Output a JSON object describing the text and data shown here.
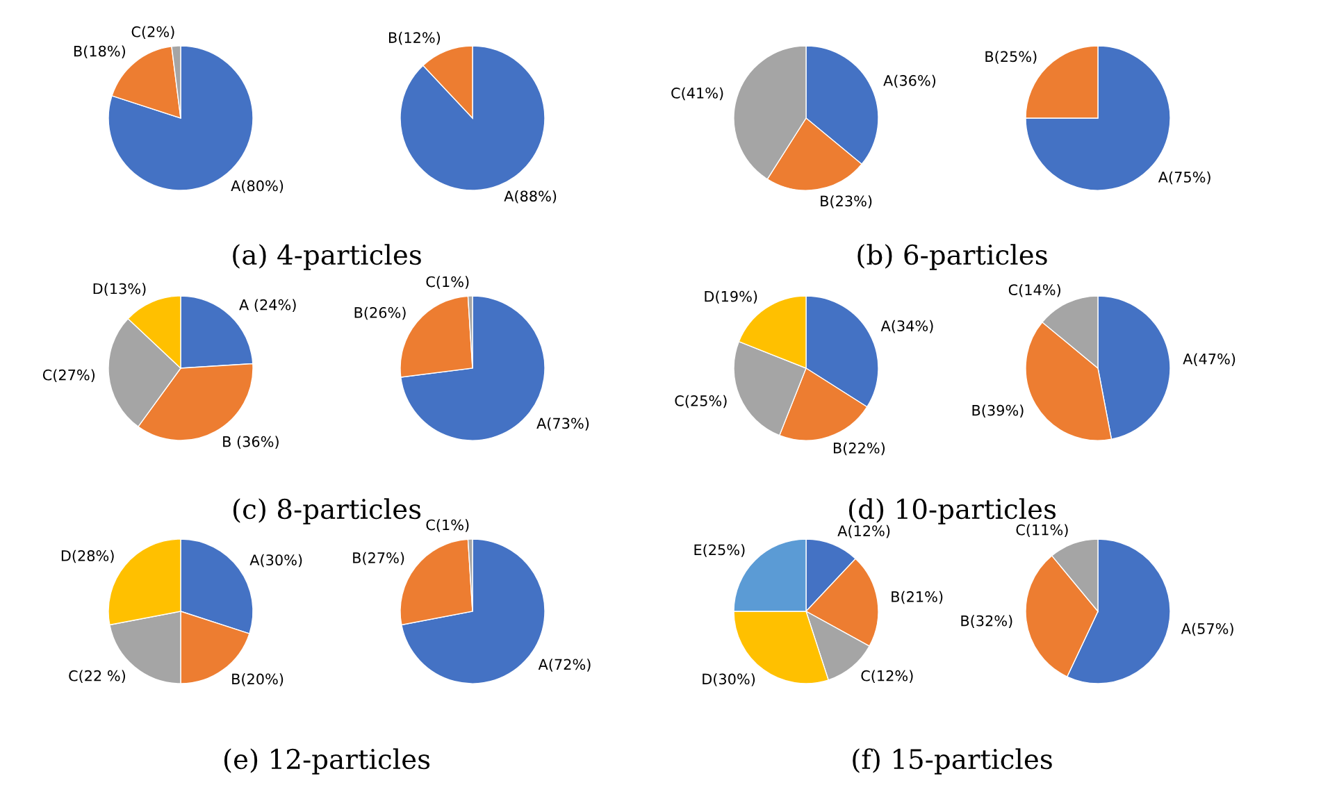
{
  "chart_data": [
    {
      "type": "pie",
      "title": "(a) 4-particles",
      "categories": [
        "A(80%)",
        "B(18%)",
        "C(2%)"
      ],
      "values": [
        80,
        18,
        2
      ],
      "colors": [
        "#4472c4",
        "#ed7d31",
        "#a5a5a5"
      ]
    },
    {
      "type": "pie",
      "categories": [
        "A(88%)",
        "B(12%)"
      ],
      "values": [
        88,
        12
      ],
      "colors": [
        "#4472c4",
        "#ed7d31"
      ]
    },
    {
      "type": "pie",
      "title": "(b) 6-particles",
      "categories": [
        "A(36%)",
        "B(23%)",
        "C(41%)"
      ],
      "values": [
        36,
        23,
        41
      ],
      "colors": [
        "#4472c4",
        "#ed7d31",
        "#a5a5a5"
      ]
    },
    {
      "type": "pie",
      "categories": [
        "A(75%)",
        "B(25%)"
      ],
      "values": [
        75,
        25
      ],
      "colors": [
        "#4472c4",
        "#ed7d31"
      ]
    },
    {
      "type": "pie",
      "title": "(c) 8-particles",
      "categories": [
        "A (24%)",
        "B (36%)",
        "C(27%)",
        "D(13%)"
      ],
      "values": [
        24,
        36,
        27,
        13
      ],
      "colors": [
        "#4472c4",
        "#ed7d31",
        "#a5a5a5",
        "#ffc000"
      ]
    },
    {
      "type": "pie",
      "categories": [
        "A(73%)",
        "B(26%)",
        "C(1%)"
      ],
      "values": [
        73,
        26,
        1
      ],
      "colors": [
        "#4472c4",
        "#ed7d31",
        "#a5a5a5"
      ]
    },
    {
      "type": "pie",
      "title": "(d) 10-particles",
      "categories": [
        "A(34%)",
        "B(22%)",
        "C(25%)",
        "D(19%)"
      ],
      "values": [
        34,
        22,
        25,
        19
      ],
      "colors": [
        "#4472c4",
        "#ed7d31",
        "#a5a5a5",
        "#ffc000"
      ]
    },
    {
      "type": "pie",
      "categories": [
        "A(47%)",
        "B(39%)",
        "C(14%)"
      ],
      "values": [
        47,
        39,
        14
      ],
      "colors": [
        "#4472c4",
        "#ed7d31",
        "#a5a5a5"
      ]
    },
    {
      "type": "pie",
      "title": "(e) 12-particles",
      "categories": [
        "A(30%)",
        "B(20%)",
        "C(22 %)",
        "D(28%)"
      ],
      "values": [
        30,
        20,
        22,
        28
      ],
      "colors": [
        "#4472c4",
        "#ed7d31",
        "#a5a5a5",
        "#ffc000"
      ]
    },
    {
      "type": "pie",
      "categories": [
        "A(72%)",
        "B(27%)",
        "C(1%)"
      ],
      "values": [
        72,
        27,
        1
      ],
      "colors": [
        "#4472c4",
        "#ed7d31",
        "#a5a5a5"
      ]
    },
    {
      "type": "pie",
      "title": "(f) 15-particles",
      "categories": [
        "A(12%)",
        "B(21%)",
        "C(12%)",
        "D(30%)",
        "E(25%)"
      ],
      "values": [
        12,
        21,
        12,
        30,
        25
      ],
      "colors": [
        "#4472c4",
        "#ed7d31",
        "#a5a5a5",
        "#ffc000",
        "#5b9bd5"
      ]
    },
    {
      "type": "pie",
      "categories": [
        "A(57%)",
        "B(32%)",
        "C(11%)"
      ],
      "values": [
        57,
        32,
        11
      ],
      "colors": [
        "#4472c4",
        "#ed7d31",
        "#a5a5a5"
      ]
    }
  ]
}
